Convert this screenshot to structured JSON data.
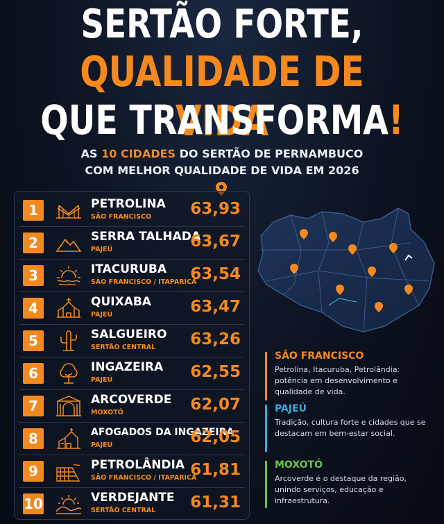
{
  "headline": {
    "line1": "SERTÃO FORTE,",
    "line2": "QUALIDADE DE VIDA",
    "line3": "QUE TRANSFORMA",
    "line3_mark": "!"
  },
  "subtitle": {
    "line1_pre": "AS ",
    "line1_highlight": "10 CIDADES",
    "line1_post": " DO SERTÃO DE PERNAMBUCO",
    "line2": "COM MELHOR QUALIDADE DE VIDA EM 2026"
  },
  "ranking": [
    {
      "rank": "1",
      "city": "PETROLINA",
      "region": "SÃO FRANCISCO",
      "score": "63,93",
      "icon": "bridge-icon"
    },
    {
      "rank": "2",
      "city": "SERRA TALHADA",
      "region": "PAJEÚ",
      "score": "63,67",
      "icon": "mountain-icon"
    },
    {
      "rank": "3",
      "city": "ITACURUBA",
      "region": "SÃO FRANCISCO / ITAPARICA",
      "score": "63,54",
      "icon": "sunset-water-icon"
    },
    {
      "rank": "4",
      "city": "QUIXABA",
      "region": "PAJEÚ",
      "score": "63,47",
      "icon": "church-icon"
    },
    {
      "rank": "5",
      "city": "SALGUEIRO",
      "region": "SERTÃO CENTRAL",
      "score": "63,26",
      "icon": "cactus-icon"
    },
    {
      "rank": "6",
      "city": "INGAZEIRA",
      "region": "PAJEÚ",
      "score": "62,55",
      "icon": "tree-icon"
    },
    {
      "rank": "7",
      "city": "ARCOVERDE",
      "region": "MOXOTÓ",
      "score": "62,07",
      "icon": "arch-icon"
    },
    {
      "rank": "8",
      "city": "AFOGADOS DA INGAZEIRA",
      "region": "PAJEÚ",
      "score": "62,05",
      "icon": "chapel-icon"
    },
    {
      "rank": "9",
      "city": "PETROLÂNDIA",
      "region": "SÃO FRANCISCO / ITAPARICA",
      "score": "61,81",
      "icon": "dam-icon"
    },
    {
      "rank": "10",
      "city": "VERDEJANTE",
      "region": "SERTÃO CENTRAL",
      "score": "61,31",
      "icon": "sun-hills-icon"
    }
  ],
  "legend": [
    {
      "title": "SÃO FRANCISCO",
      "color": "#f5891e",
      "text": "Petrolina, Itacuruba, Petrolândia: potência em desenvolvimento e qualidade de vida."
    },
    {
      "title": "PAJEÚ",
      "color": "#3fa9d9",
      "text": "Tradição, cultura forte e cidades que se destacam em bem-estar social."
    },
    {
      "title": "MOXOTÓ",
      "color": "#6cc04a",
      "text": "Arcoverde é o destaque da região, unindo serviços, educação e infraestrutura."
    }
  ],
  "colors": {
    "accent": "#f5891e",
    "background": "#0c1320"
  }
}
